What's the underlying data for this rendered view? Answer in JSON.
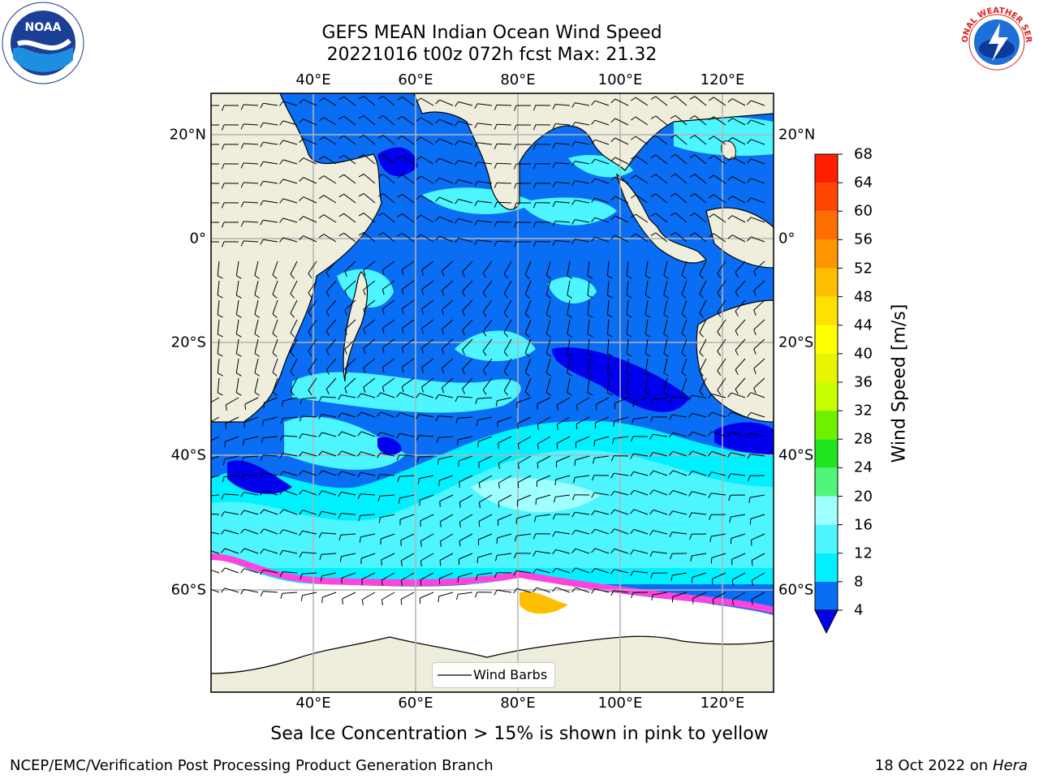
{
  "header": {
    "title_line1": "GEFS MEAN Indian Ocean Wind Speed",
    "title_line2": "20221016 t00z 072h fcst   Max: 21.32"
  },
  "logos": {
    "noaa_text": "NOAA",
    "nws_text": "NATIONAL WEATHER SERVICE"
  },
  "map": {
    "lon_ticks": [
      "40°E",
      "60°E",
      "80°E",
      "100°E",
      "120°E"
    ],
    "lat_ticks": [
      "20°N",
      "0°",
      "20°S",
      "40°S",
      "60°S"
    ],
    "legend_label": "Wind Barbs",
    "colors": {
      "land": "#efeedc",
      "sea_ice_white": "#ffffff",
      "grid": "#b4b4b4"
    }
  },
  "colorbar": {
    "label": "Wind Speed [m/s]",
    "ticks": [
      "4",
      "8",
      "12",
      "16",
      "20",
      "24",
      "28",
      "32",
      "36",
      "40",
      "44",
      "48",
      "52",
      "56",
      "60",
      "64",
      "68"
    ],
    "colors": [
      "#0a6ef5",
      "#00f0ff",
      "#4cf5ff",
      "#a0ffff",
      "#50f57a",
      "#1fe61f",
      "#6ef000",
      "#c8ff00",
      "#e8f500",
      "#ffff00",
      "#ffe000",
      "#ffbe00",
      "#ff9600",
      "#ff6e00",
      "#ff4600",
      "#ff1e00"
    ],
    "under_color": "#0000ee"
  },
  "caption": "Sea Ice Concentration > 15% is shown in pink to yellow",
  "footer": {
    "left": "NCEP/EMC/Verification Post Processing Product Generation Branch",
    "right_date": "18 Oct 2022 on ",
    "right_host": "Hera"
  }
}
